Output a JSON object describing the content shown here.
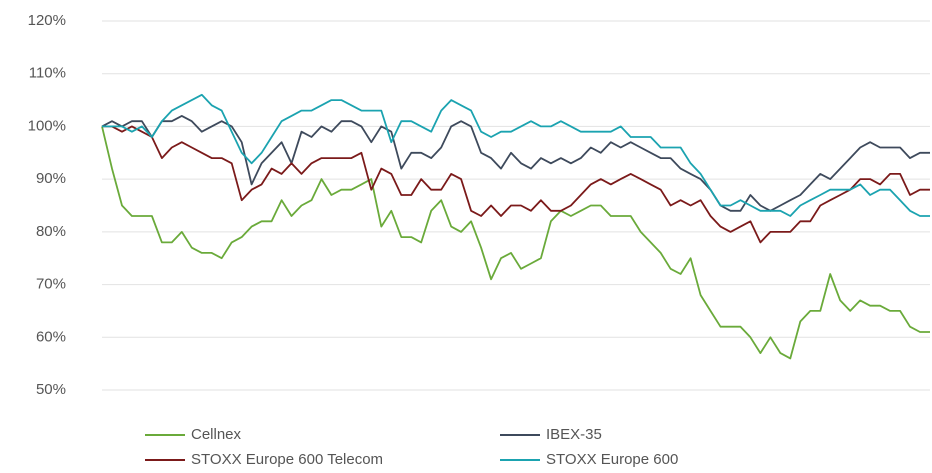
{
  "chart_data": {
    "type": "line",
    "ylim": [
      50,
      120
    ],
    "yticks": [
      {
        "value": 50,
        "label": "50%"
      },
      {
        "value": 60,
        "label": "60%"
      },
      {
        "value": 70,
        "label": "70%"
      },
      {
        "value": 80,
        "label": "80%"
      },
      {
        "value": 90,
        "label": "90%"
      },
      {
        "value": 100,
        "label": "100%"
      },
      {
        "value": 110,
        "label": "110%"
      },
      {
        "value": 120,
        "label": "120%"
      }
    ],
    "grid": true,
    "series": [
      {
        "name": "Cellnex",
        "color": "#6aaa3a",
        "values": [
          100,
          92,
          85,
          83,
          83,
          83,
          78,
          78,
          80,
          77,
          76,
          76,
          75,
          78,
          79,
          81,
          82,
          82,
          86,
          83,
          85,
          86,
          90,
          87,
          88,
          88,
          89,
          90,
          81,
          84,
          79,
          79,
          78,
          84,
          86,
          81,
          80,
          82,
          77,
          71,
          75,
          76,
          73,
          74,
          75,
          82,
          84,
          83,
          84,
          85,
          85,
          83,
          83,
          83,
          80,
          78,
          76,
          73,
          72,
          75,
          68,
          65,
          62,
          62,
          62,
          60,
          57,
          60,
          57,
          56,
          63,
          65,
          65,
          72,
          67,
          65,
          67,
          66,
          66,
          65,
          65,
          62,
          61,
          61
        ]
      },
      {
        "name": "IBEX-35",
        "color": "#3e4a5c",
        "values": [
          100,
          101,
          100,
          101,
          101,
          98,
          101,
          101,
          102,
          101,
          99,
          100,
          101,
          100,
          97,
          89,
          93,
          95,
          97,
          93,
          99,
          98,
          100,
          99,
          101,
          101,
          100,
          97,
          100,
          99,
          92,
          95,
          95,
          94,
          96,
          100,
          101,
          100,
          95,
          94,
          92,
          95,
          93,
          92,
          94,
          93,
          94,
          93,
          94,
          96,
          95,
          97,
          96,
          97,
          96,
          95,
          94,
          94,
          92,
          91,
          90,
          88,
          85,
          84,
          84,
          87,
          85,
          84,
          85,
          86,
          87,
          89,
          91,
          90,
          92,
          94,
          96,
          97,
          96,
          96,
          96,
          94,
          95,
          95
        ]
      },
      {
        "name": "STOXX Europe 600 Telecom",
        "color": "#7b1a1a",
        "values": [
          100,
          100,
          99,
          100,
          99,
          98,
          94,
          96,
          97,
          96,
          95,
          94,
          94,
          93,
          86,
          88,
          89,
          92,
          91,
          93,
          91,
          93,
          94,
          94,
          94,
          94,
          95,
          88,
          92,
          91,
          87,
          87,
          90,
          88,
          88,
          91,
          90,
          84,
          83,
          85,
          83,
          85,
          85,
          84,
          86,
          84,
          84,
          85,
          87,
          89,
          90,
          89,
          90,
          91,
          90,
          89,
          88,
          85,
          86,
          85,
          86,
          83,
          81,
          80,
          81,
          82,
          78,
          80,
          80,
          80,
          82,
          82,
          85,
          86,
          87,
          88,
          90,
          90,
          89,
          91,
          91,
          87,
          88,
          88
        ]
      },
      {
        "name": "STOXX Europe 600",
        "color": "#1ba3b0",
        "values": [
          100,
          100,
          100,
          99,
          100,
          98,
          101,
          103,
          104,
          105,
          106,
          104,
          103,
          99,
          95,
          93,
          95,
          98,
          101,
          102,
          103,
          103,
          104,
          105,
          105,
          104,
          103,
          103,
          103,
          97,
          101,
          101,
          100,
          99,
          103,
          105,
          104,
          103,
          99,
          98,
          99,
          99,
          100,
          101,
          100,
          100,
          101,
          100,
          99,
          99,
          99,
          99,
          100,
          98,
          98,
          98,
          96,
          96,
          96,
          93,
          91,
          88,
          85,
          85,
          86,
          85,
          84,
          84,
          84,
          83,
          85,
          86,
          87,
          88,
          88,
          88,
          89,
          87,
          88,
          88,
          86,
          84,
          83,
          83
        ]
      }
    ]
  }
}
